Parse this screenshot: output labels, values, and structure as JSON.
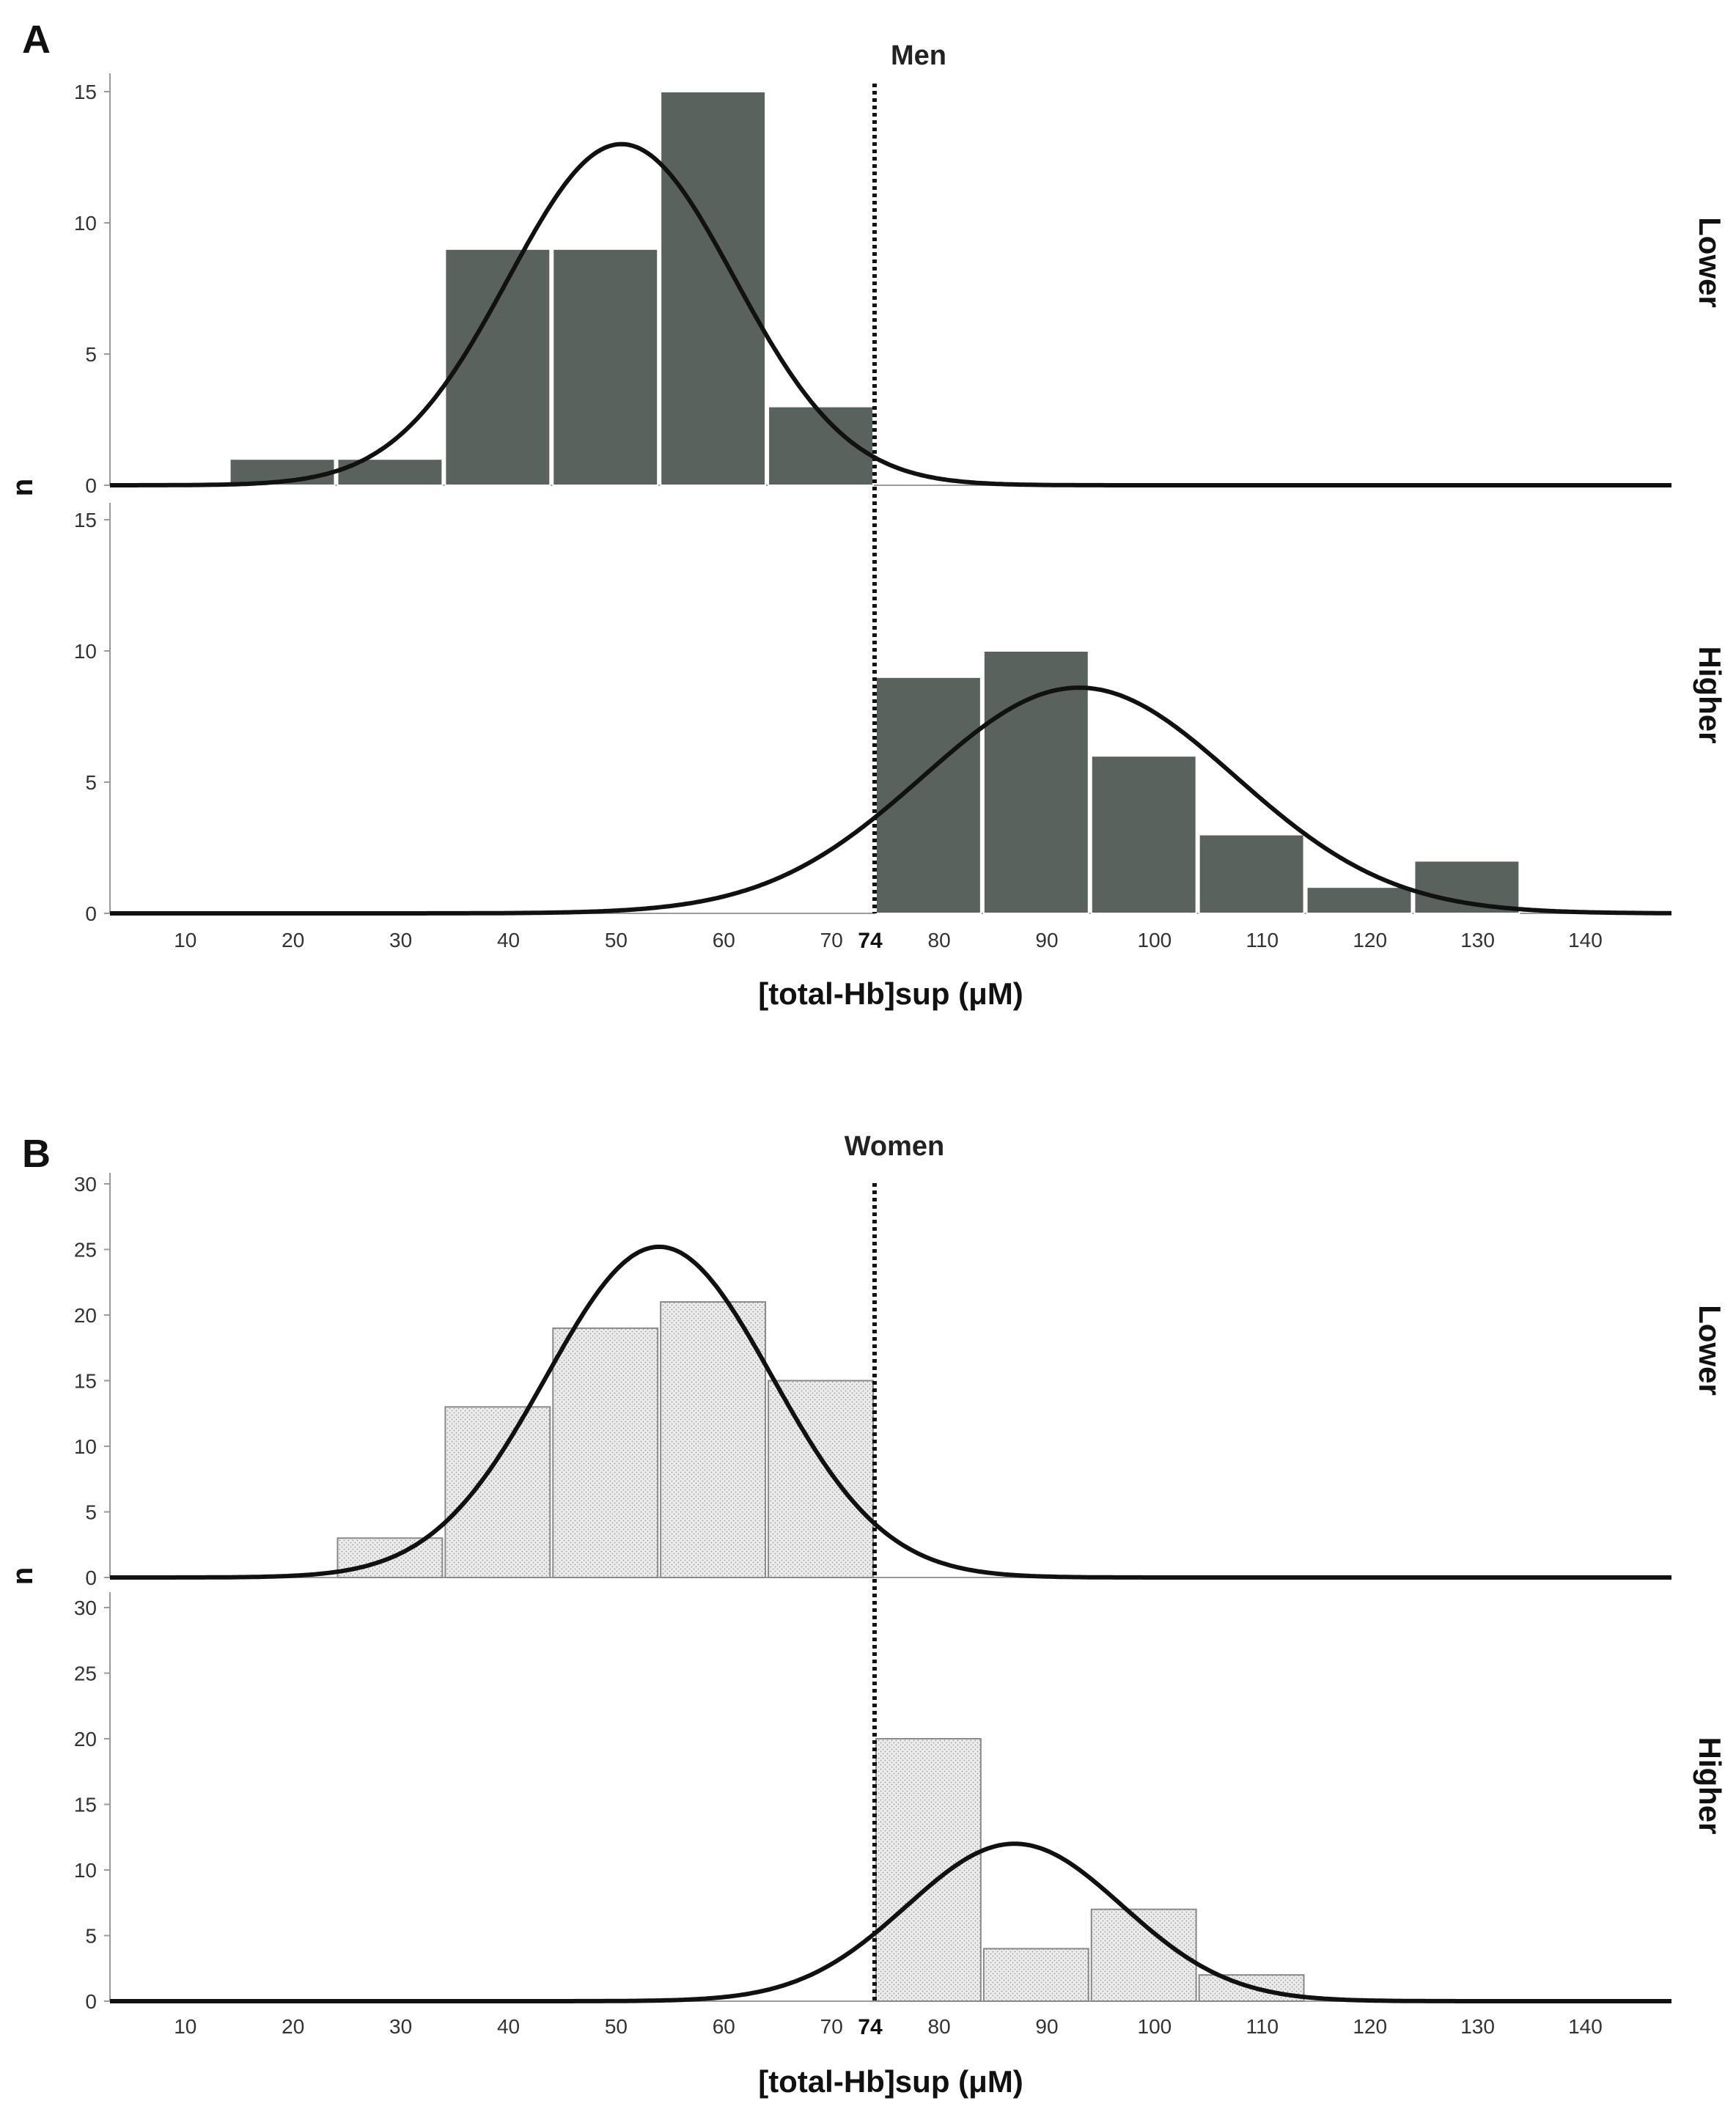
{
  "colors": {
    "men_bar": "#5a625d",
    "women_bar": "#e6e6e6",
    "women_bar_stroke": "#8a8a8a",
    "curve": "#111111",
    "axis": "#9a9a9a"
  },
  "chart_data": [
    {
      "panel": "A",
      "type": "histogram",
      "title": "Men",
      "xlabel": "[total-Hb]sup (μM)",
      "ylabel": "n",
      "xlim": [
        3,
        148
      ],
      "xticks": [
        10,
        20,
        30,
        40,
        50,
        60,
        70,
        80,
        90,
        100,
        110,
        120,
        130,
        140
      ],
      "cutoff": {
        "value": 74,
        "label": "74"
      },
      "row_labels": [
        "Lower",
        "Higher"
      ],
      "bin_width": 10,
      "subplots": [
        {
          "name": "Lower",
          "ylim": [
            0,
            16
          ],
          "yticks": [
            0,
            5,
            10,
            15
          ],
          "bins": [
            {
              "start": 14,
              "end": 24,
              "count": 1
            },
            {
              "start": 24,
              "end": 34,
              "count": 1
            },
            {
              "start": 34,
              "end": 44,
              "count": 9
            },
            {
              "start": 44,
              "end": 54,
              "count": 9
            },
            {
              "start": 54,
              "end": 64,
              "count": 15
            },
            {
              "start": 64,
              "end": 74,
              "count": 3
            }
          ],
          "normal_curve": {
            "mean": 50.5,
            "sd": 10.5,
            "peak": 13
          }
        },
        {
          "name": "Higher",
          "ylim": [
            0,
            16
          ],
          "yticks": [
            0,
            5,
            10,
            15
          ],
          "bins": [
            {
              "start": 74,
              "end": 84,
              "count": 9
            },
            {
              "start": 84,
              "end": 94,
              "count": 10
            },
            {
              "start": 94,
              "end": 104,
              "count": 6
            },
            {
              "start": 104,
              "end": 114,
              "count": 3
            },
            {
              "start": 114,
              "end": 124,
              "count": 1
            },
            {
              "start": 124,
              "end": 134,
              "count": 2
            }
          ],
          "normal_curve": {
            "mean": 93,
            "sd": 14.5,
            "peak": 8.6
          }
        }
      ]
    },
    {
      "panel": "B",
      "type": "histogram",
      "title": "Women",
      "xlabel": "[total-Hb]sup (μM)",
      "ylabel": "n",
      "xlim": [
        3,
        148
      ],
      "xticks": [
        10,
        20,
        30,
        40,
        50,
        60,
        70,
        80,
        90,
        100,
        110,
        120,
        130,
        140
      ],
      "cutoff": {
        "value": 74,
        "label": "74"
      },
      "row_labels": [
        "Lower",
        "Higher"
      ],
      "bin_width": 10,
      "subplots": [
        {
          "name": "Lower",
          "ylim": [
            0,
            31
          ],
          "yticks": [
            0,
            5,
            10,
            15,
            20,
            25,
            30
          ],
          "bins": [
            {
              "start": 24,
              "end": 34,
              "count": 3
            },
            {
              "start": 34,
              "end": 44,
              "count": 13
            },
            {
              "start": 44,
              "end": 54,
              "count": 19
            },
            {
              "start": 54,
              "end": 64,
              "count": 21
            },
            {
              "start": 64,
              "end": 74,
              "count": 15
            }
          ],
          "normal_curve": {
            "mean": 54,
            "sd": 10.5,
            "peak": 25.2
          }
        },
        {
          "name": "Higher",
          "ylim": [
            0,
            31
          ],
          "yticks": [
            0,
            5,
            10,
            15,
            20,
            25,
            30
          ],
          "bins": [
            {
              "start": 74,
              "end": 84,
              "count": 20
            },
            {
              "start": 84,
              "end": 94,
              "count": 4
            },
            {
              "start": 94,
              "end": 104,
              "count": 7
            },
            {
              "start": 104,
              "end": 114,
              "count": 2
            }
          ],
          "normal_curve": {
            "mean": 87,
            "sd": 10,
            "peak": 12
          }
        }
      ]
    }
  ]
}
